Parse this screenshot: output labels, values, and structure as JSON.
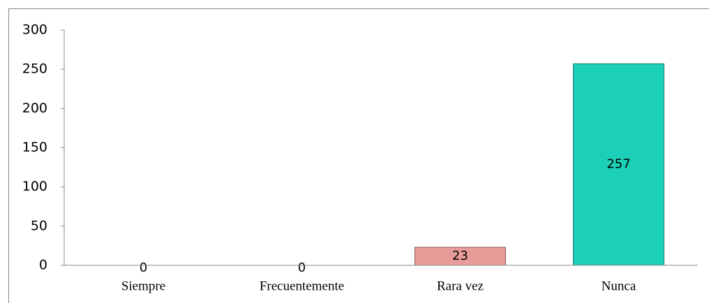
{
  "chart_data": {
    "type": "bar",
    "categories": [
      "Siempre",
      "Frecuentemente",
      "Rara vez",
      "Nunca"
    ],
    "values": [
      0,
      0,
      23,
      257
    ],
    "colors": [
      "#4f81bd",
      "#4f81bd",
      "#e89c9a",
      "#1ccfb7"
    ],
    "ylim": [
      0,
      300
    ],
    "yticks": [
      0,
      50,
      100,
      150,
      200,
      250,
      300
    ],
    "grid": false
  }
}
